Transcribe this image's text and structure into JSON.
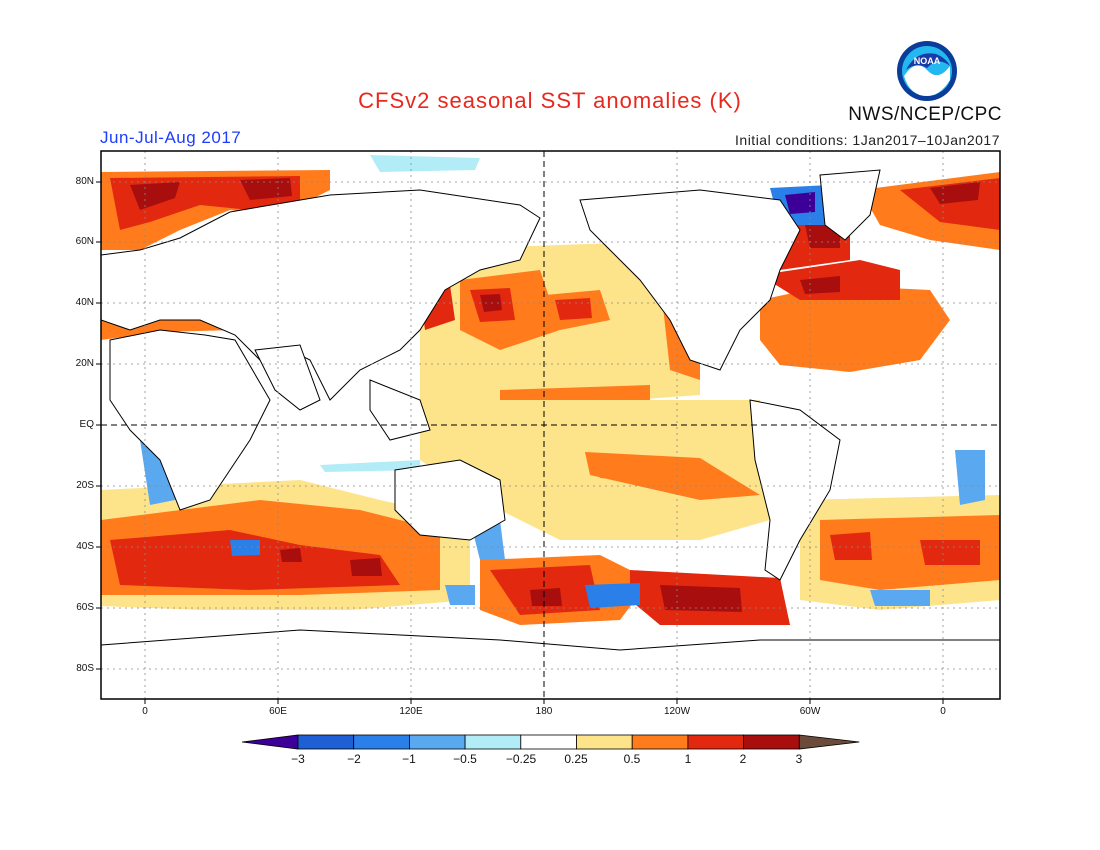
{
  "title": "CFSv2 seasonal SST anomalies (K)",
  "agency": "NWS/NCEP/CPC",
  "logo_text": "NOAA",
  "season": "Jun-Jul-Aug 2017",
  "initial_conditions": "Initial conditions: 1Jan2017–10Jan2017",
  "lat_labels": [
    "80N",
    "60N",
    "40N",
    "20N",
    "EQ",
    "20S",
    "40S",
    "60S",
    "80S"
  ],
  "lon_labels": [
    "0",
    "60E",
    "120E",
    "180",
    "120W",
    "60W",
    "0"
  ],
  "colorbar": {
    "labels": [
      "−3",
      "−2",
      "−1",
      "−0.5",
      "−0.25",
      "0.25",
      "0.5",
      "1",
      "2",
      "3"
    ],
    "colors": [
      "#3c0099",
      "#1f5fd6",
      "#2b7fe8",
      "#5aa8f0",
      "#b2ecf7",
      "#ffffff",
      "#fde38a",
      "#ff7b1c",
      "#e2290f",
      "#a80e0e",
      "#6b4a3a"
    ]
  },
  "map_colors": {
    "land_outline": "#000000",
    "grid": "#8a8a8a",
    "ocean_bg": "#ffffff"
  }
}
